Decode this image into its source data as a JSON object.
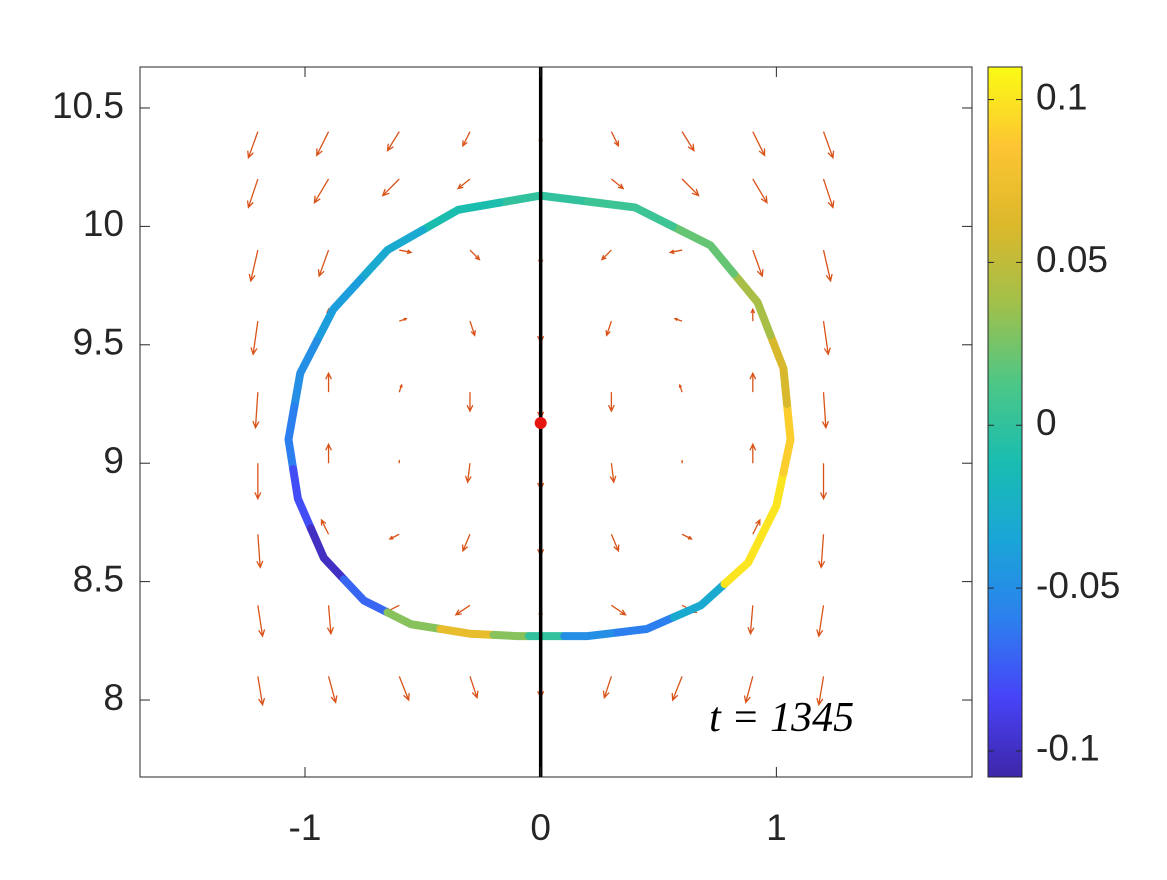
{
  "chart_data": {
    "type": "quiver",
    "xlim": [
      -1.7,
      1.83
    ],
    "ylim": [
      7.675,
      10.673
    ],
    "xticks": [
      -1,
      0,
      1
    ],
    "yticks": [
      8,
      8.5,
      9,
      9.5,
      10,
      10.5
    ],
    "quiver": {
      "color": "#d95319",
      "x": [
        -1.2,
        -0.9,
        -0.6,
        -0.3,
        0,
        0.3,
        0.6,
        0.9,
        1.2
      ],
      "y": [
        8.1,
        8.4,
        8.7,
        9.0,
        9.3,
        9.6,
        9.9,
        10.2,
        10.4
      ],
      "u": [
        [
          0.02,
          0.03,
          0.04,
          0.03,
          0,
          -0.03,
          -0.04,
          -0.03,
          -0.02
        ],
        [
          0.02,
          0.01,
          -0.06,
          -0.06,
          0,
          0.06,
          0.06,
          -0.01,
          -0.02
        ],
        [
          0.01,
          -0.03,
          -0.04,
          -0.03,
          0,
          0.03,
          0.04,
          0.03,
          -0.01
        ],
        [
          0,
          0,
          0,
          -0.01,
          0,
          0.01,
          0,
          0,
          0
        ],
        [
          -0.01,
          0,
          0.01,
          0,
          0,
          0,
          -0.01,
          0,
          0.01
        ],
        [
          -0.02,
          0,
          0.03,
          0.02,
          0,
          -0.02,
          -0.03,
          0,
          0.02
        ],
        [
          -0.03,
          -0.04,
          0.05,
          0.04,
          0,
          -0.04,
          -0.05,
          0.04,
          0.03
        ],
        [
          -0.04,
          -0.06,
          -0.07,
          -0.05,
          0,
          0.05,
          0.07,
          0.06,
          0.04
        ],
        [
          -0.04,
          -0.05,
          -0.05,
          -0.03,
          0,
          0.03,
          0.05,
          0.05,
          0.04
        ]
      ],
      "v": [
        [
          -0.12,
          -0.11,
          -0.1,
          -0.09,
          -0.09,
          -0.09,
          -0.1,
          -0.11,
          -0.12
        ],
        [
          -0.13,
          -0.12,
          -0.03,
          -0.04,
          -0.05,
          -0.04,
          -0.03,
          -0.12,
          -0.13
        ],
        [
          -0.14,
          0.06,
          -0.02,
          -0.07,
          -0.09,
          -0.07,
          -0.02,
          0.06,
          -0.14
        ],
        [
          -0.15,
          0.08,
          0.01,
          -0.08,
          -0.11,
          -0.08,
          0.01,
          0.08,
          -0.15
        ],
        [
          -0.15,
          0.08,
          0.03,
          -0.08,
          -0.11,
          -0.08,
          0.03,
          0.08,
          -0.15
        ],
        [
          -0.14,
          0.05,
          0.01,
          -0.06,
          -0.09,
          -0.06,
          0.01,
          0.05,
          -0.14
        ],
        [
          -0.13,
          -0.11,
          -0.01,
          -0.04,
          -0.06,
          -0.04,
          -0.01,
          -0.11,
          -0.13
        ],
        [
          -0.12,
          -0.1,
          -0.07,
          -0.04,
          -0.03,
          -0.04,
          -0.07,
          -0.1,
          -0.12
        ],
        [
          -0.11,
          -0.1,
          -0.08,
          -0.06,
          -0.05,
          -0.06,
          -0.08,
          -0.1,
          -0.11
        ]
      ]
    },
    "interface": {
      "x": [
        0,
        -0.35,
        -0.65,
        -0.88,
        -1.02,
        -1.07,
        -1.03,
        -0.92,
        -0.75,
        -0.55,
        -0.3,
        -0.1,
        0,
        0.2,
        0.45,
        0.68,
        0.88,
        1.0,
        1.06,
        1.03,
        0.92,
        0.72,
        0.4
      ],
      "y": [
        10.13,
        10.07,
        9.9,
        9.65,
        9.38,
        9.1,
        8.85,
        8.6,
        8.42,
        8.32,
        8.28,
        8.27,
        8.27,
        8.27,
        8.3,
        8.4,
        8.58,
        8.82,
        9.1,
        9.4,
        9.68,
        9.92,
        10.08
      ],
      "c": [
        0,
        -0.01,
        -0.03,
        -0.04,
        -0.05,
        -0.06,
        -0.08,
        -0.1,
        -0.07,
        0.03,
        0.07,
        0.03,
        0,
        -0.05,
        -0.06,
        -0.03,
        0.1,
        0.1,
        0.09,
        0.06,
        0.04,
        0.02,
        0.005
      ]
    },
    "vline": {
      "x": 0,
      "color": "#000000"
    },
    "point": {
      "x": 0,
      "y": 9.17,
      "color": "#e8140f"
    },
    "annotation": {
      "text": "t = 1345",
      "x": 1.33,
      "y": 7.91
    },
    "colorbar": {
      "clim": [
        -0.108,
        0.11
      ],
      "cticks": [
        -0.1,
        -0.05,
        0,
        0.05,
        0.1
      ],
      "colormap": [
        "#3e26a8",
        "#4743f8",
        "#2c80ee",
        "#1aa5d8",
        "#19bdb0",
        "#4dc786",
        "#a1c04a",
        "#dcb82b",
        "#fdc532",
        "#f9fb14"
      ]
    }
  }
}
